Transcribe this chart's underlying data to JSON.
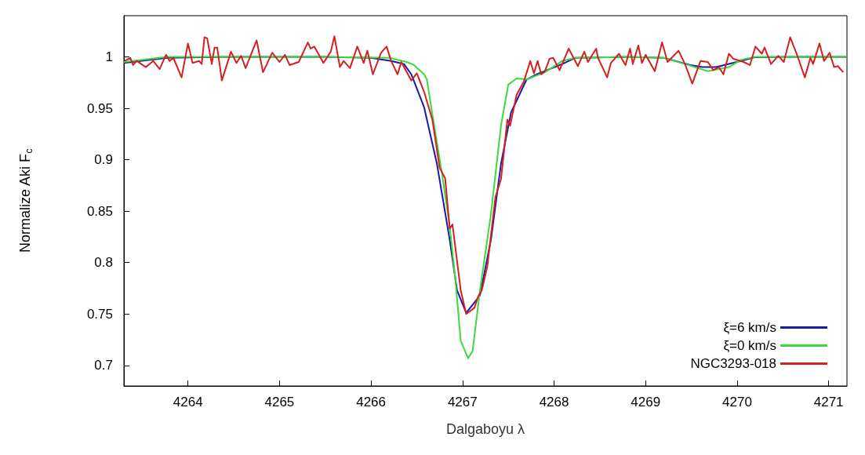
{
  "chart_data": {
    "type": "line",
    "xlabel": "Dalgaboyu λ",
    "ylabel": "Normalize Aki F$_{c}$",
    "xlim": [
      4263.3,
      4271.2
    ],
    "xticks": [
      4264,
      4265,
      4266,
      4267,
      4268,
      4269,
      4270,
      4271
    ],
    "ylim": [
      0.68,
      1.04
    ],
    "yticks": [
      0.7,
      0.75,
      0.8,
      0.85,
      0.9,
      0.95,
      1
    ],
    "grid": false,
    "legend": "bottom right",
    "marker": "none",
    "line_style": "solid",
    "series": [
      {
        "name": "ξ=6 km/s",
        "color": "#1a1aa8",
        "x": [
          4263.3,
          4263.77,
          4264.5,
          4265.5,
          4266.0,
          4266.22,
          4266.36,
          4266.44,
          4266.58,
          4266.72,
          4266.86,
          4266.94,
          4267.04,
          4267.19,
          4267.31,
          4267.42,
          4267.53,
          4267.7,
          4267.81,
          4268.09,
          4268.23,
          4268.8,
          4269.2,
          4269.49,
          4269.62,
          4269.77,
          4270.04,
          4270.19,
          4270.6,
          4271.2
        ],
        "values": [
          0.994,
          0.999,
          1.0,
          1.0,
          0.999,
          0.996,
          0.993,
          0.983,
          0.951,
          0.896,
          0.822,
          0.773,
          0.751,
          0.768,
          0.822,
          0.896,
          0.946,
          0.978,
          0.983,
          0.993,
          0.999,
          1.0,
          0.999,
          0.992,
          0.99,
          0.99,
          0.996,
          0.9995,
          1.0,
          1.0
        ]
      },
      {
        "name": "ξ=0 km/s",
        "color": "#3dd93d",
        "x": [
          4263.3,
          4263.77,
          4264.5,
          4265.5,
          4266.2,
          4266.39,
          4266.47,
          4266.58,
          4266.61,
          4266.69,
          4266.78,
          4266.86,
          4266.92,
          4266.98,
          4267.06,
          4267.11,
          4267.19,
          4267.31,
          4267.42,
          4267.5,
          4267.59,
          4267.7,
          4267.9,
          4268.09,
          4268.23,
          4268.8,
          4269.2,
          4269.43,
          4269.68,
          4269.91,
          4270.04,
          4270.19,
          4270.6,
          4271.2
        ],
        "values": [
          0.995,
          1.0,
          1.0,
          1.0,
          0.999,
          0.995,
          0.992,
          0.983,
          0.978,
          0.933,
          0.884,
          0.835,
          0.785,
          0.724,
          0.707,
          0.714,
          0.773,
          0.847,
          0.933,
          0.973,
          0.979,
          0.978,
          0.985,
          0.996,
          0.999,
          1.0,
          0.999,
          0.993,
          0.986,
          0.99,
          0.997,
          1.0,
          1.0,
          1.0
        ]
      },
      {
        "name": "NGC3293-018",
        "color": "#d42020",
        "x": [
          4263.31,
          4263.37,
          4263.4,
          4263.44,
          4263.54,
          4263.62,
          4263.69,
          4263.76,
          4263.8,
          4263.84,
          4263.93,
          4264.0,
          4264.05,
          4264.12,
          4264.15,
          4264.18,
          4264.21,
          4264.26,
          4264.29,
          4264.32,
          4264.37,
          4264.47,
          4264.53,
          4264.58,
          4264.63,
          4264.75,
          4264.82,
          4264.92,
          4265.0,
          4265.06,
          4265.11,
          4265.21,
          4265.31,
          4265.34,
          4265.38,
          4265.48,
          4265.56,
          4265.6,
          4265.66,
          4265.7,
          4265.77,
          4265.85,
          4265.92,
          4265.96,
          4266.02,
          4266.11,
          4266.17,
          4266.22,
          4266.29,
          4266.33,
          4266.44,
          4266.5,
          4266.58,
          4266.67,
          4266.75,
          4266.81,
          4266.86,
          4266.89,
          4266.98,
          4267.04,
          4267.13,
          4267.17,
          4267.21,
          4267.27,
          4267.36,
          4267.42,
          4267.49,
          4267.52,
          4267.59,
          4267.67,
          4267.74,
          4267.78,
          4267.82,
          4267.86,
          4267.9,
          4267.95,
          4267.99,
          4268.06,
          4268.16,
          4268.26,
          4268.33,
          4268.37,
          4268.46,
          4268.48,
          4268.58,
          4268.62,
          4268.71,
          4268.78,
          4268.83,
          4268.86,
          4268.92,
          4268.96,
          4269.0,
          4269.1,
          4269.18,
          4269.24,
          4269.36,
          4269.43,
          4269.51,
          4269.6,
          4269.68,
          4269.74,
          4269.8,
          4269.85,
          4269.91,
          4269.96,
          4270.07,
          4270.14,
          4270.2,
          4270.27,
          4270.3,
          4270.37,
          4270.45,
          4270.51,
          4270.58,
          4270.65,
          4270.74,
          4270.8,
          4270.83,
          4270.9,
          4270.95,
          4271.01,
          4271.06,
          4271.1,
          4271.16
        ],
        "values": [
          0.996,
          0.999,
          0.992,
          0.996,
          0.99,
          0.996,
          0.988,
          1.002,
          0.996,
          0.999,
          0.98,
          1.013,
          0.994,
          0.996,
          0.993,
          1.019,
          1.018,
          0.993,
          1.009,
          1.009,
          0.977,
          1.005,
          0.994,
          1.001,
          0.989,
          1.016,
          0.985,
          1.004,
          0.995,
          1.002,
          0.992,
          0.995,
          1.014,
          1.008,
          1.01,
          0.994,
          1.005,
          1.02,
          0.99,
          0.996,
          0.989,
          1.01,
          0.994,
          1.006,
          0.983,
          1.004,
          1.01,
          0.996,
          0.983,
          0.995,
          0.977,
          0.984,
          0.966,
          0.939,
          0.892,
          0.882,
          0.833,
          0.837,
          0.773,
          0.75,
          0.756,
          0.767,
          0.773,
          0.796,
          0.864,
          0.881,
          0.939,
          0.933,
          0.963,
          0.976,
          0.996,
          0.984,
          0.996,
          0.983,
          0.986,
          0.998,
          0.999,
          0.987,
          1.008,
          0.991,
          1.005,
          0.995,
          1.008,
          0.999,
          0.98,
          0.994,
          1.003,
          0.992,
          1.008,
          0.993,
          1.011,
          0.994,
          1.002,
          0.986,
          1.014,
          0.995,
          1.006,
          0.993,
          0.974,
          0.996,
          0.995,
          0.987,
          0.99,
          0.983,
          1.003,
          0.998,
          0.995,
          0.992,
          1.01,
          1.003,
          1.009,
          0.993,
          1.001,
          0.995,
          1.019,
          1.003,
          0.98,
          0.999,
          0.993,
          1.013,
          0.996,
          1.004,
          0.99,
          0.991,
          0.985
        ]
      }
    ]
  }
}
